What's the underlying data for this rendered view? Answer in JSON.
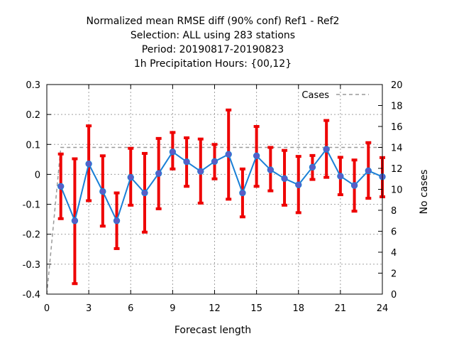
{
  "chart_data": {
    "type": "line",
    "title_lines": [
      "Normalized mean RMSE diff (90% conf) Ref1 - Ref2",
      "Selection: ALL using   283 stations",
      "Period: 20190817-20190823",
      "1h Precipitation   Hours: {00,12}"
    ],
    "xlabel": "Forecast length",
    "ylabel": "",
    "y2label": "No cases",
    "xlim": [
      0,
      24
    ],
    "ylim": [
      -0.4,
      0.3
    ],
    "y2lim": [
      0,
      20
    ],
    "xticks": [
      0,
      3,
      6,
      9,
      12,
      15,
      18,
      21,
      24
    ],
    "yticks": [
      -0.4,
      -0.3,
      -0.2,
      -0.1,
      0,
      0.1,
      0.2,
      0.3
    ],
    "yticklabels": [
      "-0.4",
      "-0.3",
      "-0.2",
      "-0.1",
      "0",
      "0.1",
      "0.2",
      "0.3"
    ],
    "y2ticks": [
      0,
      2,
      4,
      6,
      8,
      10,
      12,
      14,
      16,
      18,
      20
    ],
    "grid": true,
    "legend": {
      "position": "top-right",
      "label": "Cases"
    },
    "x": [
      1,
      2,
      3,
      4,
      5,
      6,
      7,
      8,
      9,
      10,
      11,
      12,
      13,
      14,
      15,
      16,
      17,
      18,
      19,
      20,
      21,
      22,
      23,
      24
    ],
    "series": [
      {
        "name": "RMSE diff",
        "color": "#1a7fd6",
        "marker_color": "#5c5cc6",
        "values": [
          -0.04,
          -0.155,
          0.035,
          -0.057,
          -0.155,
          -0.01,
          -0.062,
          0.003,
          0.075,
          0.042,
          0.01,
          0.043,
          0.067,
          -0.062,
          0.062,
          0.015,
          -0.014,
          -0.035,
          0.024,
          0.084,
          -0.006,
          -0.037,
          0.012,
          -0.008
        ],
        "err_low": [
          -0.148,
          -0.365,
          -0.088,
          -0.173,
          -0.248,
          -0.103,
          -0.193,
          -0.115,
          0.018,
          -0.04,
          -0.096,
          -0.015,
          -0.083,
          -0.142,
          -0.04,
          -0.055,
          -0.103,
          -0.128,
          -0.017,
          -0.01,
          -0.068,
          -0.123,
          -0.08,
          -0.075
        ],
        "err_high": [
          0.068,
          0.052,
          0.162,
          0.062,
          -0.062,
          0.087,
          0.07,
          0.12,
          0.14,
          0.122,
          0.118,
          0.1,
          0.215,
          0.018,
          0.16,
          0.09,
          0.08,
          0.06,
          0.063,
          0.18,
          0.057,
          0.048,
          0.106,
          0.056
        ],
        "err_color": "#ee0000"
      },
      {
        "name": "Cases",
        "axis": "y2",
        "color": "#999999",
        "x": [
          0,
          1,
          2,
          3,
          4,
          5,
          6,
          7,
          8,
          9,
          10,
          11,
          12,
          13,
          14,
          15,
          16,
          17,
          18,
          19,
          20,
          21,
          22,
          23,
          24
        ],
        "values": [
          0,
          14,
          14,
          14,
          14,
          14,
          14,
          14,
          14,
          14,
          14,
          14,
          14,
          14,
          14,
          14,
          14,
          14,
          14,
          14,
          14,
          14,
          14,
          14,
          14
        ]
      }
    ]
  }
}
